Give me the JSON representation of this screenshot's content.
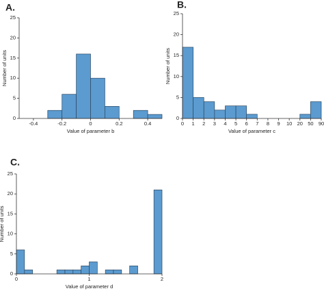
{
  "chart_data": [
    {
      "type": "histogram",
      "title": "A.",
      "xlabel": "Value of parameter b",
      "ylabel": "Number of units",
      "bins": [
        -0.3,
        -0.2,
        -0.1,
        0,
        0.1,
        0.2,
        0.3,
        0.4,
        0.5
      ],
      "counts": [
        2,
        6,
        16,
        10,
        3,
        0,
        2,
        1
      ],
      "xlim": [
        -0.5,
        0.5
      ],
      "xticks": [
        -0.4,
        -0.2,
        0,
        0.2,
        0.4
      ],
      "ylim": [
        0,
        25
      ],
      "yticks": [
        0,
        5,
        10,
        15,
        20,
        25
      ],
      "color": "#5b9bd0"
    },
    {
      "type": "histogram",
      "title": "B.",
      "xlabel": "Value of parameter c",
      "ylabel": "Number of units",
      "bins": [
        0,
        1,
        2,
        3,
        4,
        5,
        6,
        7,
        8,
        9,
        10,
        20,
        50,
        90
      ],
      "counts": [
        17,
        5,
        4,
        2,
        3,
        3,
        1,
        0,
        0,
        0,
        0,
        1,
        4
      ],
      "xlim": [
        0,
        90
      ],
      "xticks": [
        0,
        1,
        2,
        3,
        4,
        5,
        6,
        7,
        8,
        9,
        10,
        20,
        50,
        90
      ],
      "ylim": [
        0,
        25
      ],
      "yticks": [
        0,
        5,
        10,
        15,
        20,
        25
      ],
      "color": "#5b9bd0"
    },
    {
      "type": "histogram",
      "title": "C.",
      "xlabel": "Value of parameter d",
      "ylabel": "Number of units",
      "bins": [
        0,
        0.1111,
        0.2222,
        0.3333,
        0.4444,
        0.5556,
        0.6667,
        0.7778,
        0.8889,
        1,
        1.1111,
        1.2222,
        1.3333,
        1.4444,
        1.5556,
        1.6667,
        1.7778,
        1.8889,
        2
      ],
      "counts": [
        6,
        1,
        0,
        0,
        0,
        1,
        1,
        1,
        2,
        3,
        0,
        1,
        1,
        0,
        2,
        0,
        0,
        21
      ],
      "xlim": [
        0,
        2
      ],
      "xticks": [
        0,
        1,
        2
      ],
      "ylim": [
        0,
        25
      ],
      "yticks": [
        0,
        5,
        10,
        15,
        20,
        25
      ],
      "color": "#5b9bd0"
    }
  ]
}
